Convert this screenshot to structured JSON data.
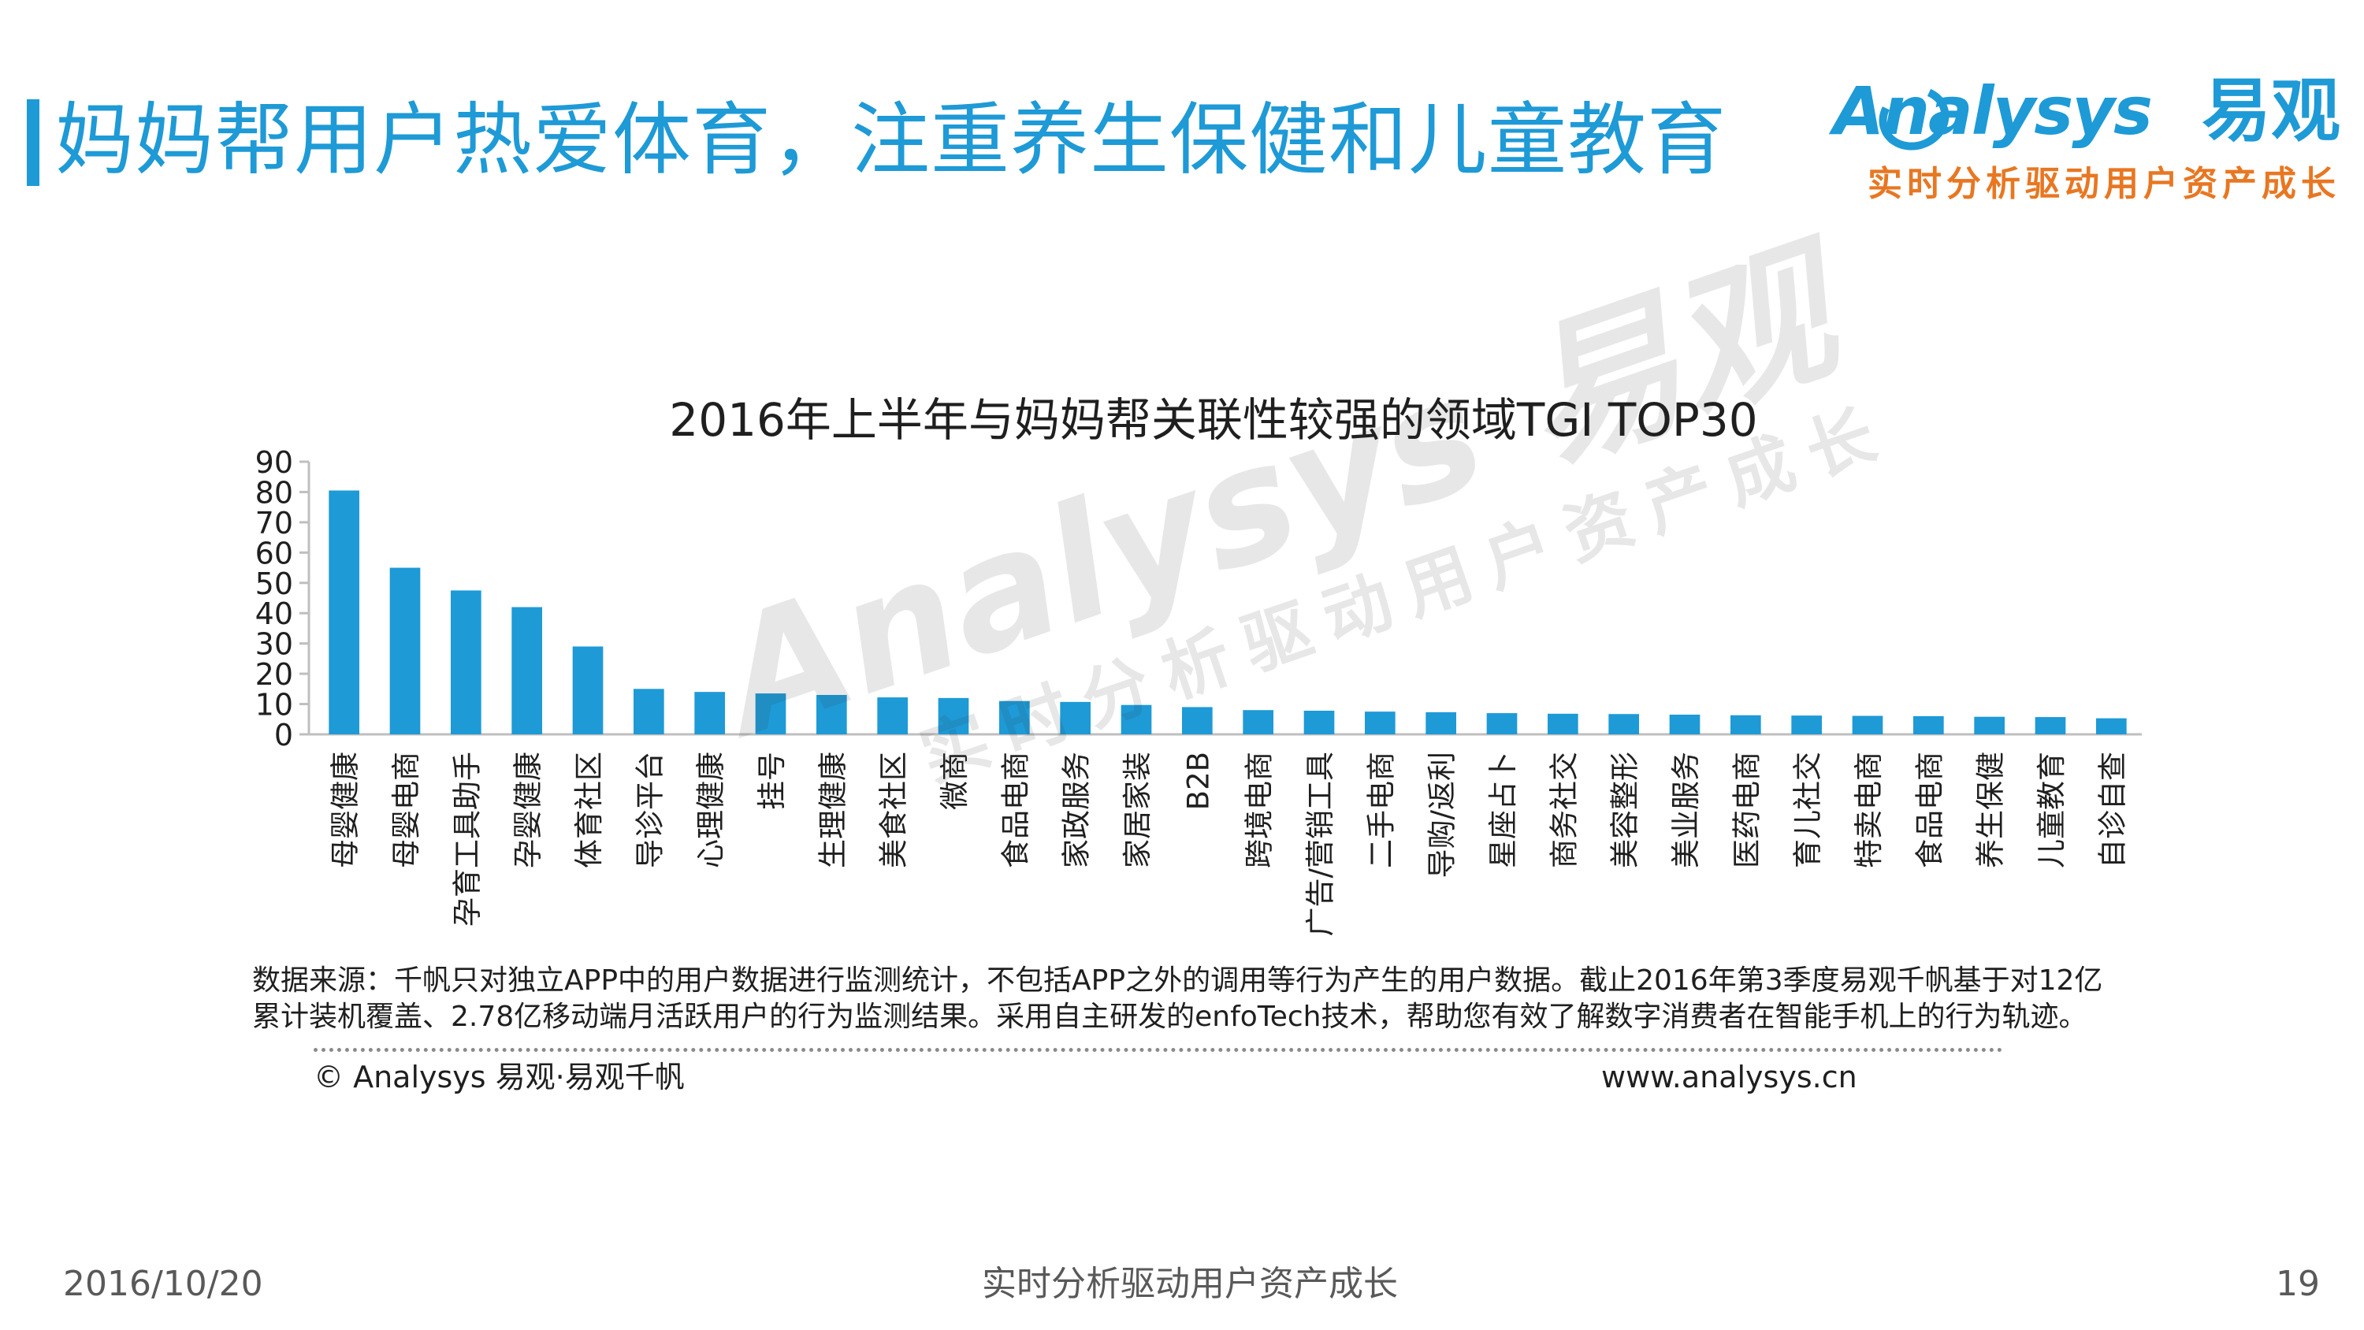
{
  "header": {
    "title": "妈妈帮用户热爱体育，注重养生保健和儿童教育",
    "logo_text": "Analysys",
    "logo_cn": "易观",
    "logo_slogan": "实时分析驱动用户资产成长"
  },
  "watermark": {
    "main": "Analysys 易观",
    "sub": "实时分析驱动用户资产成长"
  },
  "chart_data": {
    "type": "bar",
    "title": "2016年上半年与妈妈帮关联性较强的领域TGI TOP30",
    "xlabel": "",
    "ylabel": "",
    "ylim": [
      0,
      90
    ],
    "yticks": [
      0,
      10,
      20,
      30,
      40,
      50,
      60,
      70,
      80,
      90
    ],
    "grid": false,
    "legend": "none",
    "bar_color": "#1e9ad6",
    "categories": [
      "母婴健康",
      "母婴电商",
      "孕育工具助手",
      "孕婴健康",
      "体育社区",
      "导诊平台",
      "心理健康",
      "挂号",
      "生理健康",
      "美食社区",
      "微商",
      "食品电商",
      "家政服务",
      "家居家装",
      "B2B",
      "跨境电商",
      "广告/营销工具",
      "二手电商",
      "导购/返利",
      "星座占卜",
      "商务社交",
      "美容整形",
      "美业服务",
      "医药电商",
      "育儿社交",
      "特卖电商",
      "食品电商",
      "养生保健",
      "儿童教育",
      "自诊自查"
    ],
    "values": [
      80.5,
      55,
      47.5,
      42,
      29,
      15,
      14,
      13.5,
      13,
      12.2,
      12,
      11,
      10.7,
      9.7,
      9,
      8,
      7.8,
      7.5,
      7.3,
      7,
      6.8,
      6.7,
      6.5,
      6.3,
      6.2,
      6.1,
      6,
      5.8,
      5.7,
      5.3
    ]
  },
  "source": {
    "text": "数据来源：千帆只对独立APP中的用户数据进行监测统计，不包括APP之外的调用等行为产生的用户数据。截止2016年第3季度易观千帆基于对12亿累计装机覆盖、2.78亿移动端月活跃用户的行为监测结果。采用自主研发的enfoTech技术，帮助您有效了解数字消费者在智能手机上的行为轨迹。",
    "copyright": "© Analysys 易观·易观千帆",
    "website": "www.analysys.cn"
  },
  "footer": {
    "date": "2016/10/20",
    "slogan": "实时分析驱动用户资产成长",
    "page": "19"
  }
}
